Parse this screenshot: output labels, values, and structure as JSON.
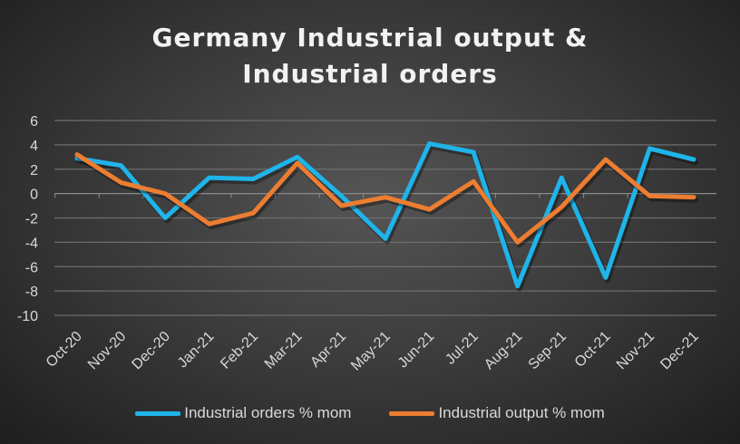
{
  "chart_data": {
    "type": "line",
    "title_lines": [
      "Germany Industrial output &",
      "Industrial orders"
    ],
    "categories": [
      "Oct-20",
      "Nov-20",
      "Dec-20",
      "Jan-21",
      "Feb-21",
      "Mar-21",
      "Apr-21",
      "May-21",
      "Jun-21",
      "Jul-21",
      "Aug-21",
      "Sep-21",
      "Oct-21",
      "Nov-21",
      "Dec-21"
    ],
    "ylim": [
      -10,
      6
    ],
    "yticks": [
      6,
      4,
      2,
      0,
      -2,
      -4,
      -6,
      -8,
      -10
    ],
    "grid": true,
    "legend_position": "bottom",
    "series": [
      {
        "name": "Industrial orders % mom",
        "color": "#1fb4ea",
        "values": [
          2.9,
          2.3,
          -2.0,
          1.3,
          1.2,
          3.0,
          -0.2,
          -3.7,
          4.1,
          3.4,
          -7.6,
          1.3,
          -6.9,
          3.7,
          2.8
        ]
      },
      {
        "name": "Industrial output % mom",
        "color": "#ed7d31",
        "values": [
          3.2,
          0.9,
          0.0,
          -2.5,
          -1.6,
          2.5,
          -1.0,
          -0.3,
          -1.3,
          1.0,
          -4.0,
          -1.1,
          2.8,
          -0.2,
          -0.3
        ]
      }
    ]
  }
}
